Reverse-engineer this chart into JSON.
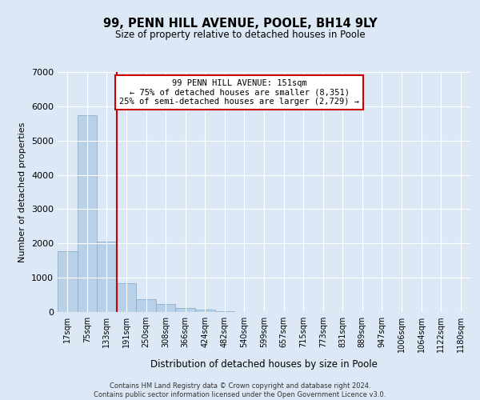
{
  "title": "99, PENN HILL AVENUE, POOLE, BH14 9LY",
  "subtitle": "Size of property relative to detached houses in Poole",
  "xlabel": "Distribution of detached houses by size in Poole",
  "ylabel": "Number of detached properties",
  "bar_labels": [
    "17sqm",
    "75sqm",
    "133sqm",
    "191sqm",
    "250sqm",
    "308sqm",
    "366sqm",
    "424sqm",
    "482sqm",
    "540sqm",
    "599sqm",
    "657sqm",
    "715sqm",
    "773sqm",
    "831sqm",
    "889sqm",
    "947sqm",
    "1006sqm",
    "1064sqm",
    "1122sqm",
    "1180sqm"
  ],
  "bar_values": [
    1780,
    5750,
    2060,
    830,
    370,
    230,
    110,
    60,
    30,
    10,
    5,
    0,
    0,
    0,
    0,
    0,
    0,
    0,
    0,
    0,
    0
  ],
  "bar_color": "#b8d0e8",
  "bar_edgecolor": "#8ab0cc",
  "vline_x": 2.5,
  "vline_color": "#cc0000",
  "annotation_title": "99 PENN HILL AVENUE: 151sqm",
  "annotation_line1": "← 75% of detached houses are smaller (8,351)",
  "annotation_line2": "25% of semi-detached houses are larger (2,729) →",
  "annotation_box_edgecolor": "#cc0000",
  "ylim": [
    0,
    7000
  ],
  "yticks": [
    0,
    1000,
    2000,
    3000,
    4000,
    5000,
    6000,
    7000
  ],
  "footer_line1": "Contains HM Land Registry data © Crown copyright and database right 2024.",
  "footer_line2": "Contains public sector information licensed under the Open Government Licence v3.0.",
  "bg_color": "#dce8f5",
  "plot_bg_color": "#dce8f5",
  "grid_color": "#ffffff"
}
